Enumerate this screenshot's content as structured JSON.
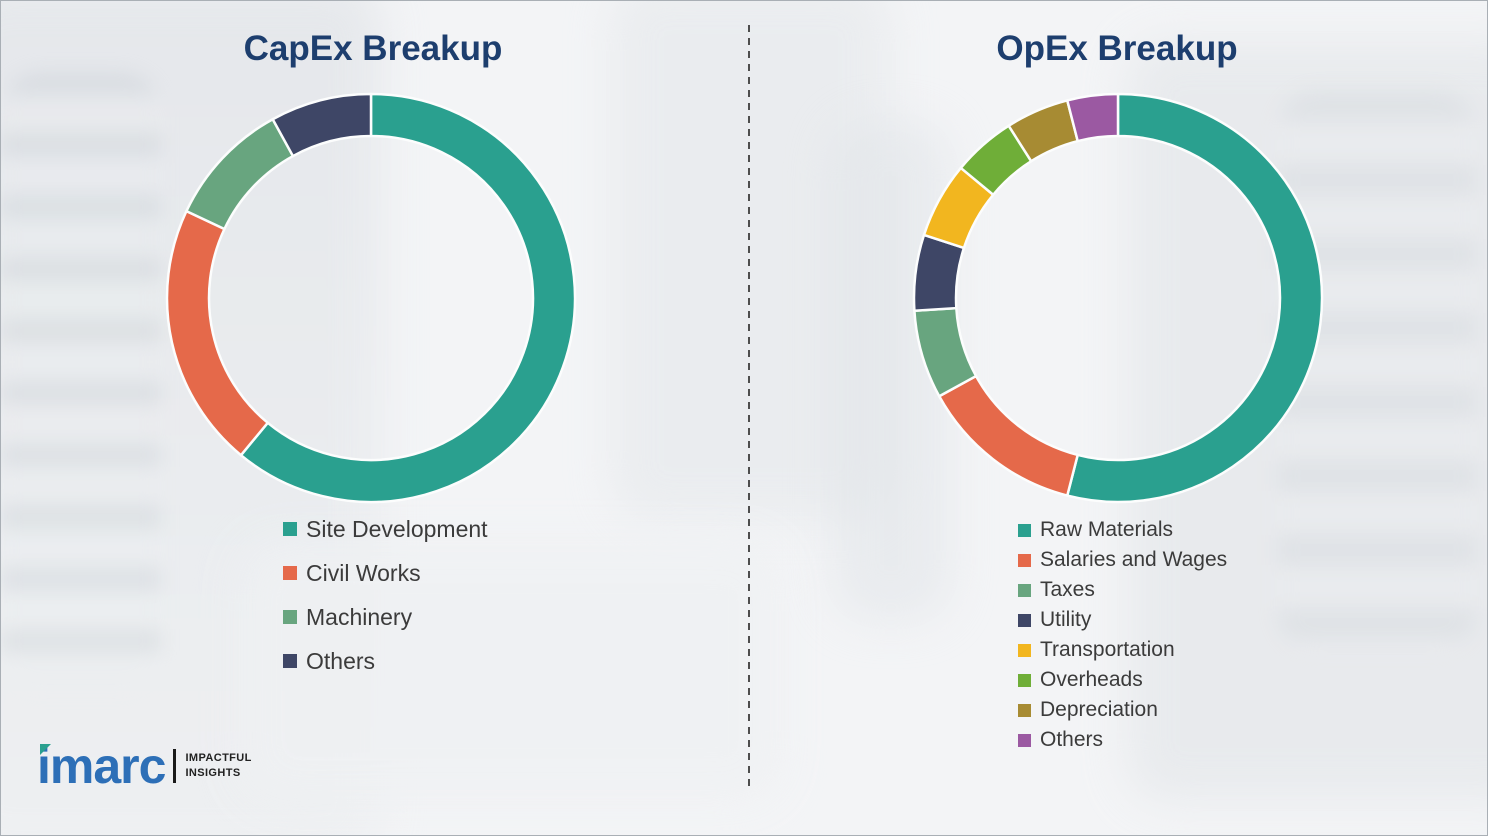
{
  "chart_data": [
    {
      "type": "pie",
      "variant": "donut",
      "title": "CapEx Breakup",
      "title_color": "#1d3e6e",
      "legend_position": "bottom-left",
      "labels": [
        "Site Development",
        "Civil Works",
        "Machinery",
        "Others"
      ],
      "values": [
        61,
        21,
        10,
        8
      ],
      "colors": [
        "#2aa08f",
        "#e5694a",
        "#68a57f",
        "#3e4666"
      ]
    },
    {
      "type": "pie",
      "variant": "donut",
      "title": "OpEx Breakup",
      "title_color": "#1d3e6e",
      "legend_position": "bottom-left",
      "labels": [
        "Raw Materials",
        "Salaries and Wages",
        "Taxes",
        "Utility",
        "Transportation",
        "Overheads",
        "Depreciation",
        "Others"
      ],
      "values": [
        54,
        13,
        7,
        6,
        6,
        5,
        5,
        4
      ],
      "colors": [
        "#2aa08f",
        "#e5694a",
        "#68a57f",
        "#3e4666",
        "#f2b61f",
        "#6fae38",
        "#a78b33",
        "#9b59a2"
      ]
    }
  ],
  "branding": {
    "logo_text": "imarc",
    "logo_color": "#2d6fb7",
    "logo_accent_color": "#2aa08f",
    "tagline_line1": "IMPACTFUL",
    "tagline_line2": "INSIGHTS"
  }
}
